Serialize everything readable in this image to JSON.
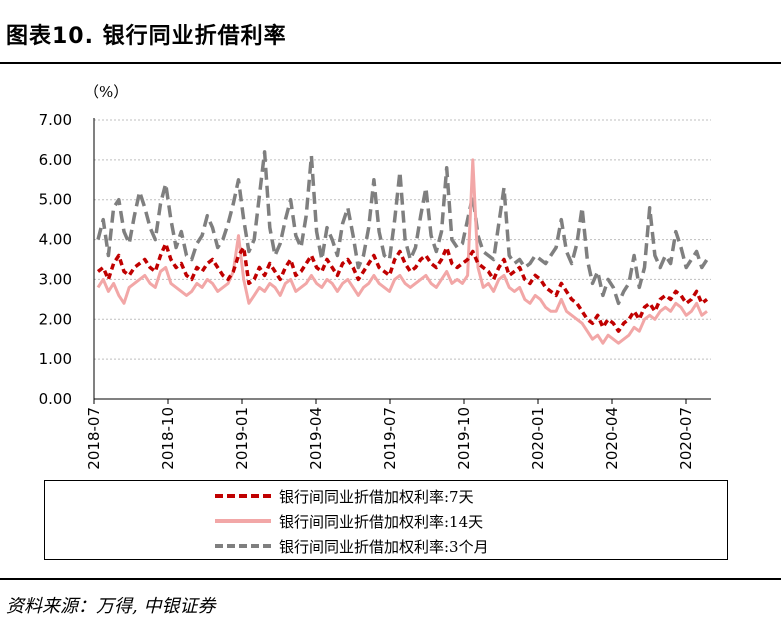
{
  "header": {
    "title": "图表10. 银行同业折借利率"
  },
  "footer": {
    "source": "资料来源：万得, 中银证券"
  },
  "chart_data": {
    "type": "line",
    "ylabel": "（%）",
    "ylim": [
      0,
      7
    ],
    "yticks": [
      "7.00",
      "6.00",
      "5.00",
      "4.00",
      "3.00",
      "2.00",
      "1.00",
      "0.00"
    ],
    "ytick_values": [
      7,
      6,
      5,
      4,
      3,
      2,
      1,
      0
    ],
    "xtick_labels": [
      "2018-07",
      "2018-10",
      "2019-01",
      "2019-04",
      "2019-07",
      "2019-10",
      "2020-01",
      "2020-04",
      "2020-07"
    ],
    "grid": true,
    "legend": "bottom",
    "series": [
      {
        "name": "银行间同业折借加权利率:7天",
        "color": "#C00000",
        "style": "dashed",
        "values": [
          3.2,
          3.3,
          3.0,
          3.4,
          3.6,
          3.2,
          3.1,
          3.3,
          3.4,
          3.5,
          3.3,
          3.2,
          3.6,
          3.9,
          3.5,
          3.3,
          3.4,
          3.1,
          3.0,
          3.3,
          3.2,
          3.4,
          3.5,
          3.3,
          3.1,
          3.0,
          3.2,
          3.6,
          3.8,
          2.9,
          3.0,
          3.3,
          3.1,
          3.4,
          3.2,
          3.0,
          3.3,
          3.5,
          3.1,
          3.2,
          3.4,
          3.6,
          3.3,
          3.2,
          3.5,
          3.3,
          3.1,
          3.4,
          3.5,
          3.3,
          3.0,
          3.2,
          3.4,
          3.6,
          3.3,
          3.2,
          3.1,
          3.5,
          3.7,
          3.4,
          3.2,
          3.3,
          3.5,
          3.6,
          3.4,
          3.3,
          3.5,
          3.8,
          3.4,
          3.3,
          3.4,
          3.5,
          3.7,
          3.4,
          3.3,
          3.2,
          3.0,
          3.3,
          3.5,
          3.1,
          3.2,
          3.3,
          3.0,
          2.9,
          3.1,
          3.0,
          2.8,
          2.7,
          2.6,
          2.9,
          2.7,
          2.5,
          2.4,
          2.2,
          2.0,
          1.9,
          2.1,
          1.8,
          2.0,
          1.9,
          1.7,
          1.9,
          2.0,
          2.2,
          2.0,
          2.3,
          2.4,
          2.2,
          2.5,
          2.6,
          2.5,
          2.7,
          2.6,
          2.4,
          2.5,
          2.7,
          2.4,
          2.5
        ]
      },
      {
        "name": "银行间同业折借加权利率:14天",
        "color": "#F2A7A7",
        "style": "solid",
        "values": [
          2.8,
          3.0,
          2.7,
          2.9,
          2.6,
          2.4,
          2.8,
          2.9,
          3.0,
          3.1,
          2.9,
          2.8,
          3.2,
          3.3,
          2.9,
          2.8,
          2.7,
          2.6,
          2.7,
          2.9,
          2.8,
          3.0,
          2.9,
          2.7,
          2.8,
          2.9,
          3.2,
          4.1,
          3.0,
          2.4,
          2.6,
          2.8,
          2.7,
          2.9,
          2.8,
          2.6,
          2.9,
          3.0,
          2.7,
          2.8,
          2.9,
          3.1,
          2.9,
          2.8,
          3.0,
          2.9,
          2.7,
          2.9,
          3.0,
          2.8,
          2.6,
          2.8,
          2.9,
          3.1,
          2.9,
          2.8,
          2.7,
          3.0,
          3.1,
          2.9,
          2.8,
          2.9,
          3.0,
          3.1,
          2.9,
          2.8,
          3.0,
          3.2,
          2.9,
          3.0,
          2.9,
          3.1,
          6.0,
          3.3,
          2.8,
          2.9,
          2.7,
          3.0,
          3.1,
          2.8,
          2.7,
          2.8,
          2.5,
          2.4,
          2.6,
          2.5,
          2.3,
          2.2,
          2.2,
          2.5,
          2.2,
          2.1,
          2.0,
          1.9,
          1.7,
          1.5,
          1.6,
          1.4,
          1.6,
          1.5,
          1.4,
          1.5,
          1.6,
          1.8,
          1.7,
          2.0,
          2.1,
          2.0,
          2.2,
          2.3,
          2.2,
          2.4,
          2.3,
          2.1,
          2.2,
          2.4,
          2.1,
          2.2
        ]
      },
      {
        "name": "银行间同业折借加权利率:3个月",
        "color": "#7F7F7F",
        "style": "dashed",
        "values": [
          4.0,
          4.5,
          3.6,
          4.8,
          5.0,
          4.2,
          3.9,
          4.6,
          5.2,
          4.8,
          4.3,
          4.0,
          4.9,
          5.4,
          4.5,
          3.8,
          4.2,
          3.6,
          3.5,
          3.9,
          4.1,
          4.6,
          4.3,
          3.8,
          4.0,
          4.4,
          4.9,
          5.5,
          4.5,
          3.7,
          4.0,
          5.1,
          6.2,
          4.3,
          3.6,
          3.9,
          4.5,
          5.0,
          4.1,
          3.8,
          4.6,
          6.1,
          4.2,
          3.5,
          4.3,
          4.0,
          3.6,
          4.4,
          4.8,
          4.1,
          3.3,
          3.6,
          4.3,
          5.5,
          4.2,
          3.6,
          3.5,
          4.5,
          5.7,
          4.0,
          3.5,
          3.8,
          4.6,
          5.3,
          4.1,
          3.7,
          4.2,
          5.8,
          4.0,
          3.8,
          3.9,
          4.5,
          5.1,
          4.1,
          3.7,
          3.6,
          3.5,
          4.4,
          5.3,
          3.6,
          3.4,
          3.5,
          3.3,
          3.4,
          3.6,
          3.5,
          3.4,
          3.6,
          3.8,
          4.5,
          3.7,
          3.4,
          3.9,
          4.8,
          3.5,
          2.9,
          3.2,
          2.6,
          3.0,
          2.8,
          2.4,
          2.7,
          2.9,
          3.6,
          2.8,
          3.3,
          4.8,
          3.6,
          3.3,
          3.6,
          3.4,
          4.2,
          3.8,
          3.3,
          3.5,
          3.7,
          3.3,
          3.5
        ]
      }
    ]
  }
}
